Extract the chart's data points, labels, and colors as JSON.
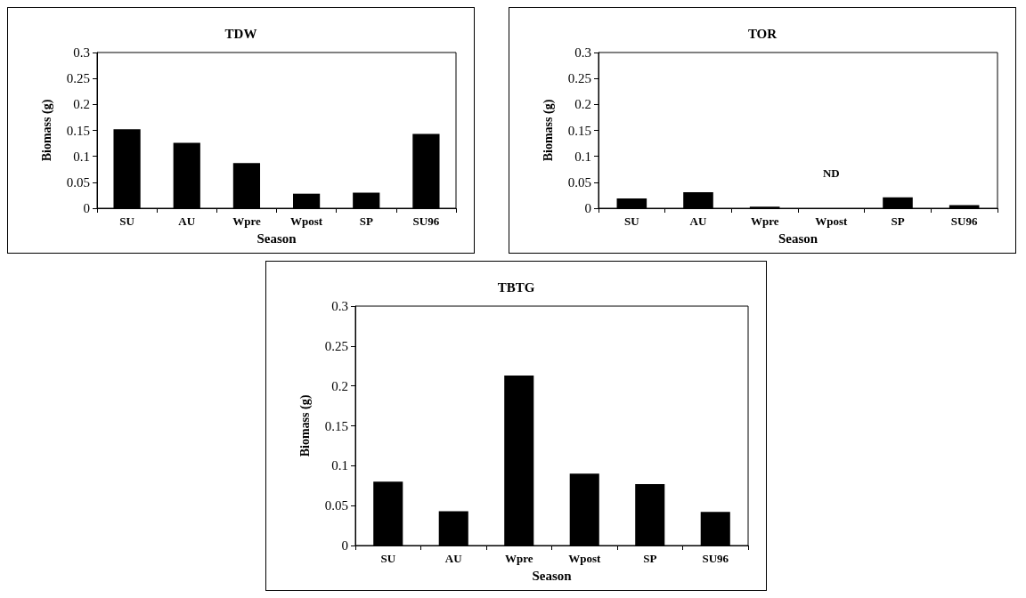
{
  "chart_data": [
    {
      "type": "bar",
      "title": "TDW",
      "xlabel": "Season",
      "ylabel": "Biomass (g)",
      "categories": [
        "SU",
        "AU",
        "Wpre",
        "Wpost",
        "SP",
        "SU96"
      ],
      "values": [
        0.152,
        0.126,
        0.087,
        0.028,
        0.03,
        0.143
      ],
      "color": "#000000",
      "ylim": [
        0,
        0.3
      ],
      "yticks": [
        0,
        0.05,
        0.1,
        0.15,
        0.2,
        0.25,
        0.3
      ]
    },
    {
      "type": "bar",
      "title": "TOR",
      "xlabel": "Season",
      "ylabel": "Biomass (g)",
      "categories": [
        "SU",
        "AU",
        "Wpre",
        "Wpost",
        "SP",
        "SU96"
      ],
      "values": [
        0.019,
        0.031,
        0.003,
        null,
        0.021,
        0.006
      ],
      "color": "#000000",
      "ylim": [
        0,
        0.3
      ],
      "yticks": [
        0,
        0.05,
        0.1,
        0.15,
        0.2,
        0.25,
        0.3
      ],
      "annotations": [
        "ND"
      ]
    },
    {
      "type": "bar",
      "title": "TBTG",
      "xlabel": "Season",
      "ylabel": "Biomass (g)",
      "categories": [
        "SU",
        "AU",
        "Wpre",
        "Wpost",
        "SP",
        "SU96"
      ],
      "values": [
        0.08,
        0.043,
        0.213,
        0.09,
        0.077,
        0.042
      ],
      "color": "#000000",
      "ylim": [
        0,
        0.3
      ],
      "yticks": [
        0,
        0.05,
        0.1,
        0.15,
        0.2,
        0.25,
        0.3
      ]
    }
  ]
}
